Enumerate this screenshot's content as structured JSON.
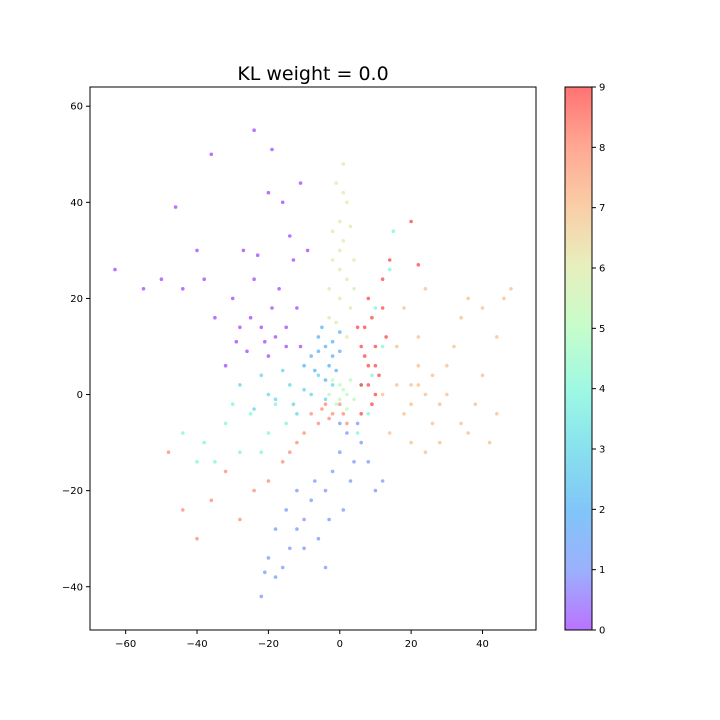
{
  "chart_data": {
    "type": "scatter",
    "title": "KL weight = 0.0",
    "xlabel": "",
    "ylabel": "",
    "xlim": [
      -70,
      55
    ],
    "ylim": [
      -49,
      64
    ],
    "xticks": [
      -60,
      -40,
      -20,
      0,
      20,
      40
    ],
    "yticks": [
      -40,
      -20,
      0,
      20,
      40,
      60
    ],
    "grid": false,
    "colormap": "rainbow",
    "colorbar": {
      "min": 0,
      "max": 9,
      "ticks": [
        0,
        1,
        2,
        3,
        4,
        5,
        6,
        7,
        8,
        9
      ]
    },
    "point_alpha": 0.55,
    "clusters": [
      {
        "label": 0,
        "color": "#8000ff",
        "points": [
          [
            -18,
            12
          ],
          [
            -15,
            10
          ],
          [
            -22,
            14
          ],
          [
            -12,
            18
          ],
          [
            -20,
            8
          ],
          [
            -25,
            16
          ],
          [
            -17,
            22
          ],
          [
            -13,
            28
          ],
          [
            -14,
            33
          ],
          [
            -16,
            40
          ],
          [
            -24,
            24
          ],
          [
            -30,
            20
          ],
          [
            -28,
            14
          ],
          [
            -32,
            6
          ],
          [
            -35,
            16
          ],
          [
            -38,
            24
          ],
          [
            -40,
            30
          ],
          [
            -44,
            22
          ],
          [
            -46,
            39
          ],
          [
            -50,
            24
          ],
          [
            -55,
            22
          ],
          [
            -63,
            26
          ],
          [
            -36,
            50
          ],
          [
            -24,
            55
          ],
          [
            -19,
            51
          ],
          [
            -11,
            44
          ],
          [
            -20,
            42
          ],
          [
            -9,
            30
          ],
          [
            -26,
            9
          ],
          [
            -19,
            18
          ],
          [
            -23,
            29
          ],
          [
            -27,
            30
          ],
          [
            -15,
            14
          ],
          [
            -21,
            11
          ],
          [
            -11,
            10
          ],
          [
            -29,
            11
          ]
        ]
      },
      {
        "label": 1,
        "color": "#4a6ffb",
        "points": [
          [
            2,
            -8
          ],
          [
            0,
            -12
          ],
          [
            4,
            -14
          ],
          [
            -2,
            -16
          ],
          [
            6,
            -10
          ],
          [
            -4,
            -20
          ],
          [
            -8,
            -22
          ],
          [
            -10,
            -26
          ],
          [
            -12,
            -28
          ],
          [
            -14,
            -32
          ],
          [
            -16,
            -36
          ],
          [
            -18,
            -38
          ],
          [
            -22,
            -42
          ],
          [
            -20,
            -34
          ],
          [
            -6,
            -30
          ],
          [
            -4,
            -36
          ],
          [
            1,
            -24
          ],
          [
            3,
            -18
          ],
          [
            8,
            -14
          ],
          [
            12,
            -18
          ],
          [
            10,
            -20
          ],
          [
            -15,
            -24
          ],
          [
            -18,
            -28
          ],
          [
            -7,
            -18
          ],
          [
            0,
            -6
          ],
          [
            5,
            -6
          ],
          [
            -3,
            -26
          ],
          [
            -10,
            -32
          ],
          [
            -12,
            -20
          ],
          [
            -21,
            -37
          ]
        ]
      },
      {
        "label": 2,
        "color": "#1996f3",
        "points": [
          [
            -4,
            10
          ],
          [
            -2,
            8
          ],
          [
            -6,
            12
          ],
          [
            -3,
            6
          ],
          [
            0,
            9
          ],
          [
            -8,
            8
          ],
          [
            -5,
            14
          ],
          [
            -1,
            5
          ],
          [
            -7,
            5
          ],
          [
            -2,
            11
          ],
          [
            -4,
            3
          ],
          [
            -10,
            6
          ],
          [
            0,
            13
          ],
          [
            -6,
            9
          ]
        ]
      },
      {
        "label": 3,
        "color": "#26c7e0",
        "points": [
          [
            -10,
            1
          ],
          [
            -14,
            2
          ],
          [
            -18,
            -1
          ],
          [
            -6,
            4
          ],
          [
            -2,
            2
          ],
          [
            -20,
            0
          ],
          [
            -24,
            -3
          ],
          [
            -12,
            -4
          ],
          [
            -8,
            0
          ],
          [
            -16,
            5
          ],
          [
            -28,
            2
          ],
          [
            -4,
            -1
          ],
          [
            -22,
            4
          ],
          [
            -13,
            -2
          ]
        ]
      },
      {
        "label": 4,
        "color": "#4df3ce",
        "points": [
          [
            -25,
            -4
          ],
          [
            -32,
            -6
          ],
          [
            -38,
            -10
          ],
          [
            -44,
            -8
          ],
          [
            -20,
            -8
          ],
          [
            -15,
            -6
          ],
          [
            -28,
            -12
          ],
          [
            -35,
            -14
          ],
          [
            -18,
            -2
          ],
          [
            -30,
            -2
          ],
          [
            8,
            -4
          ],
          [
            6,
            2
          ],
          [
            12,
            10
          ],
          [
            10,
            18
          ],
          [
            14,
            26
          ],
          [
            15,
            34
          ],
          [
            5,
            -8
          ],
          [
            -40,
            -14
          ],
          [
            -22,
            -12
          ],
          [
            9,
            4
          ]
        ]
      },
      {
        "label": 5,
        "color": "#99fb9f",
        "points": [
          [
            0,
            2
          ],
          [
            2,
            0
          ],
          [
            -1,
            -2
          ],
          [
            3,
            3
          ],
          [
            1,
            1
          ],
          [
            -3,
            0
          ],
          [
            4,
            -1
          ],
          [
            -2,
            3
          ],
          [
            2,
            -3
          ],
          [
            0,
            -1
          ]
        ]
      },
      {
        "label": 6,
        "color": "#d4e287",
        "points": [
          [
            0,
            20
          ],
          [
            2,
            24
          ],
          [
            -2,
            28
          ],
          [
            1,
            32
          ],
          [
            3,
            18
          ],
          [
            -1,
            15
          ],
          [
            0,
            36
          ],
          [
            2,
            40
          ],
          [
            -1,
            44
          ],
          [
            1,
            48
          ],
          [
            4,
            28
          ],
          [
            -3,
            22
          ],
          [
            3,
            35
          ],
          [
            0,
            26
          ],
          [
            2,
            12
          ],
          [
            -2,
            34
          ],
          [
            1,
            42
          ],
          [
            -3,
            16
          ],
          [
            4,
            22
          ],
          [
            0,
            30
          ]
        ]
      },
      {
        "label": 7,
        "color": "#f6a55e",
        "points": [
          [
            20,
            2
          ],
          [
            24,
            0
          ],
          [
            18,
            -4
          ],
          [
            22,
            6
          ],
          [
            26,
            4
          ],
          [
            16,
            2
          ],
          [
            28,
            -2
          ],
          [
            30,
            6
          ],
          [
            32,
            10
          ],
          [
            34,
            16
          ],
          [
            36,
            20
          ],
          [
            40,
            18
          ],
          [
            44,
            12
          ],
          [
            46,
            20
          ],
          [
            48,
            22
          ],
          [
            38,
            -2
          ],
          [
            34,
            -6
          ],
          [
            28,
            -10
          ],
          [
            24,
            -12
          ],
          [
            20,
            -10
          ],
          [
            14,
            -8
          ],
          [
            12,
            0
          ],
          [
            16,
            10
          ],
          [
            22,
            12
          ],
          [
            26,
            -6
          ],
          [
            30,
            0
          ],
          [
            40,
            4
          ],
          [
            36,
            -8
          ],
          [
            44,
            -4
          ],
          [
            42,
            -10
          ],
          [
            18,
            18
          ],
          [
            24,
            22
          ],
          [
            20,
            -2
          ],
          [
            22,
            2
          ]
        ]
      },
      {
        "label": 8,
        "color": "#ff603a",
        "points": [
          [
            -2,
            -4
          ],
          [
            -6,
            -6
          ],
          [
            0,
            -2
          ],
          [
            -4,
            -2
          ],
          [
            2,
            -6
          ],
          [
            -8,
            -4
          ],
          [
            -12,
            -10
          ],
          [
            -16,
            -14
          ],
          [
            -20,
            -18
          ],
          [
            -24,
            -20
          ],
          [
            -28,
            -26
          ],
          [
            -32,
            -16
          ],
          [
            -36,
            -22
          ],
          [
            -40,
            -30
          ],
          [
            -44,
            -24
          ],
          [
            -48,
            -12
          ],
          [
            -3,
            -5
          ],
          [
            1,
            -4
          ],
          [
            -5,
            -3
          ],
          [
            -10,
            -8
          ],
          [
            -14,
            -12
          ]
        ]
      },
      {
        "label": 9,
        "color": "#ff0000",
        "points": [
          [
            8,
            6
          ],
          [
            10,
            10
          ],
          [
            7,
            14
          ],
          [
            12,
            18
          ],
          [
            6,
            2
          ],
          [
            9,
            -2
          ],
          [
            11,
            4
          ],
          [
            8,
            20
          ],
          [
            6,
            10
          ],
          [
            10,
            0
          ],
          [
            13,
            12
          ],
          [
            7,
            8
          ],
          [
            9,
            16
          ],
          [
            12,
            24
          ],
          [
            14,
            28
          ],
          [
            6,
            -4
          ],
          [
            5,
            14
          ],
          [
            20,
            36
          ],
          [
            22,
            27
          ],
          [
            8,
            2
          ],
          [
            10,
            6
          ]
        ]
      }
    ]
  }
}
